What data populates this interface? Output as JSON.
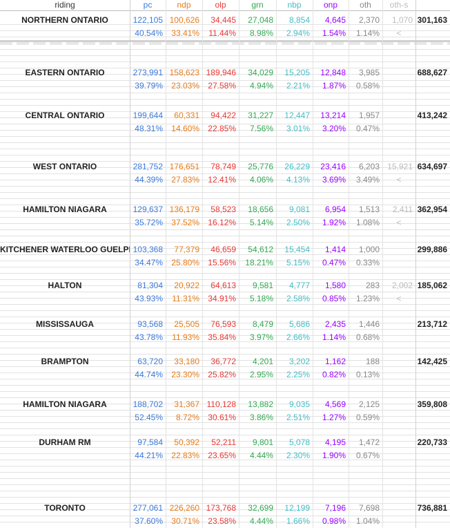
{
  "columns": [
    {
      "key": "riding",
      "label": "riding",
      "color": "#333333"
    },
    {
      "key": "pc",
      "label": "pc",
      "color": "#3c78d8"
    },
    {
      "key": "ndp",
      "label": "ndp",
      "color": "#e67c1b"
    },
    {
      "key": "olp",
      "label": "olp",
      "color": "#e53935"
    },
    {
      "key": "grn",
      "label": "grn",
      "color": "#34a853"
    },
    {
      "key": "nbp",
      "label": "nbp",
      "color": "#46bdc6"
    },
    {
      "key": "onp",
      "label": "onp",
      "color": "#9900ff"
    },
    {
      "key": "oth",
      "label": "oth",
      "color": "#888888"
    },
    {
      "key": "oths",
      "label": "oth-s",
      "color": "#bbbbbb"
    },
    {
      "key": "total",
      "label": "",
      "color": "#222222"
    }
  ],
  "regions": [
    {
      "name": "NORTHERN ONTARIO",
      "votes": [
        "122,105",
        "100,626",
        "34,445",
        "27,048",
        "8,854",
        "4,645",
        "2,370",
        "1,070",
        "301,163"
      ],
      "pcts": [
        "40.54%",
        "33.41%",
        "11.44%",
        "8.98%",
        "2.94%",
        "1.54%",
        "1.14%",
        "<",
        ""
      ]
    },
    {
      "name": "EASTERN ONTARIO",
      "votes": [
        "273,991",
        "158,623",
        "189,946",
        "34,029",
        "15,205",
        "12,848",
        "3,985",
        "",
        "688,627"
      ],
      "pcts": [
        "39.79%",
        "23.03%",
        "27.58%",
        "4.94%",
        "2.21%",
        "1.87%",
        "0.58%",
        "",
        ""
      ]
    },
    {
      "name": "CENTRAL ONTARIO",
      "votes": [
        "199,644",
        "60,331",
        "94,422",
        "31,227",
        "12,447",
        "13,214",
        "1,957",
        "",
        "413,242"
      ],
      "pcts": [
        "48.31%",
        "14.60%",
        "22.85%",
        "7.56%",
        "3.01%",
        "3.20%",
        "0.47%",
        "",
        ""
      ]
    },
    {
      "name": "WEST ONTARIO",
      "votes": [
        "281,752",
        "176,651",
        "78,749",
        "25,776",
        "26,229",
        "23,416",
        "6,203",
        "15,921",
        "634,697"
      ],
      "pcts": [
        "44.39%",
        "27.83%",
        "12.41%",
        "4.06%",
        "4.13%",
        "3.69%",
        "3.49%",
        "<",
        ""
      ]
    },
    {
      "name": "HAMILTON NIAGARA",
      "votes": [
        "129,637",
        "136,179",
        "58,523",
        "18,656",
        "9,081",
        "6,954",
        "1,513",
        "2,411",
        "362,954"
      ],
      "pcts": [
        "35.72%",
        "37.52%",
        "16.12%",
        "5.14%",
        "2.50%",
        "1.92%",
        "1.08%",
        "<",
        ""
      ]
    },
    {
      "name": "KITCHENER WATERLOO GUELPH",
      "votes": [
        "103,368",
        "77,379",
        "46,659",
        "54,612",
        "15,454",
        "1,414",
        "1,000",
        "",
        "299,886"
      ],
      "pcts": [
        "34.47%",
        "25.80%",
        "15.56%",
        "18.21%",
        "5.15%",
        "0.47%",
        "0.33%",
        "",
        ""
      ]
    },
    {
      "name": "HALTON",
      "votes": [
        "81,304",
        "20,922",
        "64,613",
        "9,581",
        "4,777",
        "1,580",
        "283",
        "2,002",
        "185,062"
      ],
      "pcts": [
        "43.93%",
        "11.31%",
        "34.91%",
        "5.18%",
        "2.58%",
        "0.85%",
        "1.23%",
        "<",
        ""
      ]
    },
    {
      "name": "MISSISSAUGA",
      "votes": [
        "93,568",
        "25,505",
        "76,593",
        "8,479",
        "5,686",
        "2,435",
        "1,446",
        "",
        "213,712"
      ],
      "pcts": [
        "43.78%",
        "11.93%",
        "35.84%",
        "3.97%",
        "2.66%",
        "1.14%",
        "0.68%",
        "",
        ""
      ]
    },
    {
      "name": "BRAMPTON",
      "votes": [
        "63,720",
        "33,180",
        "36,772",
        "4,201",
        "3,202",
        "1,162",
        "188",
        "",
        "142,425"
      ],
      "pcts": [
        "44.74%",
        "23.30%",
        "25.82%",
        "2.95%",
        "2.25%",
        "0.82%",
        "0.13%",
        "",
        ""
      ]
    },
    {
      "name": "HAMILTON NIAGARA",
      "votes": [
        "188,702",
        "31,367",
        "110,128",
        "13,882",
        "9,035",
        "4,569",
        "2,125",
        "",
        "359,808"
      ],
      "pcts": [
        "52.45%",
        "8.72%",
        "30.61%",
        "3.86%",
        "2.51%",
        "1.27%",
        "0.59%",
        "",
        ""
      ]
    },
    {
      "name": "DURHAM RM",
      "votes": [
        "97,584",
        "50,392",
        "52,211",
        "9,801",
        "5,078",
        "4,195",
        "1,472",
        "",
        "220,733"
      ],
      "pcts": [
        "44.21%",
        "22.83%",
        "23.65%",
        "4.44%",
        "2.30%",
        "1.90%",
        "0.67%",
        "",
        ""
      ]
    },
    {
      "name": "TORONTO",
      "votes": [
        "277,061",
        "226,260",
        "173,768",
        "32,699",
        "12,199",
        "7,196",
        "7,698",
        "",
        "736,881"
      ],
      "pcts": [
        "37.60%",
        "30.71%",
        "23.58%",
        "4.44%",
        "1.66%",
        "0.98%",
        "1.04%",
        "",
        ""
      ]
    }
  ]
}
